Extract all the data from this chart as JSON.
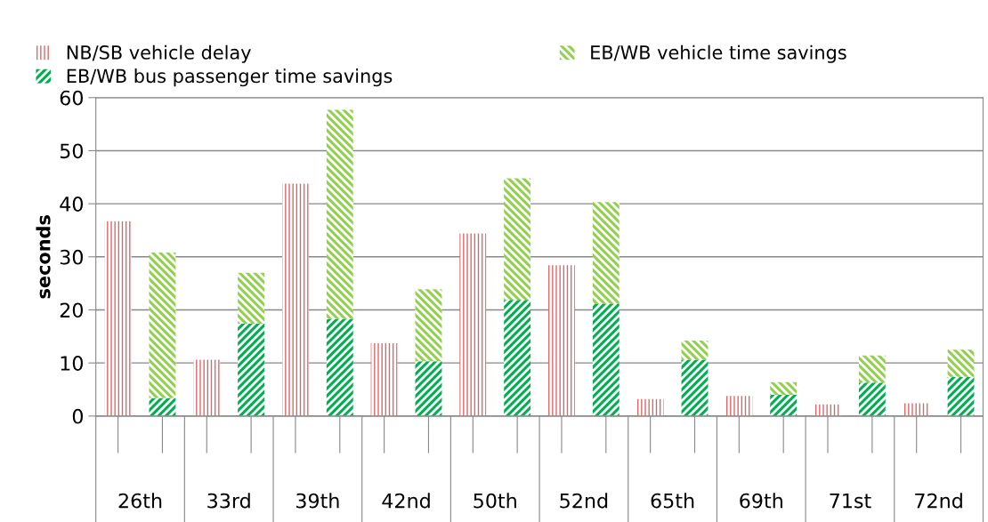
{
  "chart_data": {
    "type": "bar",
    "stacked": true,
    "ylabel": "seconds",
    "categories": [
      null,
      null,
      null,
      null,
      null,
      null,
      null,
      null,
      null,
      null,
      null,
      null,
      null,
      null,
      null,
      null,
      null,
      null,
      null,
      null
    ],
    "annotations": [
      "26th",
      "33rd",
      "39th",
      "42nd",
      "50th",
      "52nd",
      "65th",
      "69th",
      "71st",
      "72nd"
    ],
    "series": [
      {
        "name": "NB/SB vehicle delay",
        "color": "#e06666",
        "values": [
          36.7,
          null,
          10.6,
          null,
          43.8,
          null,
          13.7,
          null,
          34.4,
          null,
          28.4,
          null,
          3.2,
          null,
          3.8,
          null,
          2.2,
          null,
          2.4,
          null
        ]
      },
      {
        "name": "EB/WB bus passenger time savings",
        "color": "#00b050",
        "values": [
          null,
          3.4,
          null,
          17.4,
          null,
          18.3,
          null,
          10.3,
          null,
          21.9,
          null,
          21.1,
          null,
          10.6,
          null,
          4.0,
          null,
          6.3,
          null,
          7.4
        ]
      },
      {
        "name": "EB/WB vehicle time savings",
        "color": "#92d050",
        "values": [
          null,
          27.4,
          null,
          9.6,
          null,
          39.4,
          null,
          13.6,
          null,
          22.9,
          null,
          19.2,
          null,
          3.6,
          null,
          2.4,
          null,
          5.1,
          null,
          5.1
        ]
      }
    ],
    "ylim": [
      0,
      60
    ],
    "yticks": [
      0,
      10,
      20,
      30,
      40,
      50,
      60
    ],
    "grid": "y",
    "legend": "top left"
  }
}
